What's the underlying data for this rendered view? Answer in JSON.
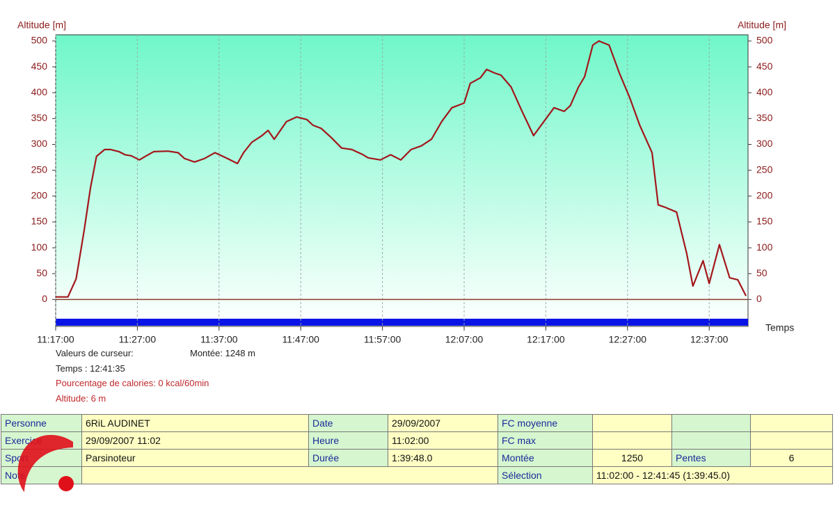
{
  "chart_data": {
    "type": "line",
    "y_label": "Altitude [m]",
    "y2_label": "Altitude [m]",
    "x_label": "Temps",
    "color": "#a3161a",
    "x": [
      "11:17:00",
      "11:18:30",
      "11:19:30",
      "11:20:30",
      "11:21:15",
      "11:22:00",
      "11:23:00",
      "11:23:45",
      "11:24:45",
      "11:25:30",
      "11:26:15",
      "11:27:15",
      "11:28:00",
      "11:29:00",
      "11:30:45",
      "11:32:00",
      "11:32:45",
      "11:34:00",
      "11:35:15",
      "11:36:30",
      "11:38:00",
      "11:39:15",
      "11:40:00",
      "11:41:00",
      "11:42:15",
      "11:43:00",
      "11:43:45",
      "11:45:15",
      "11:46:30",
      "11:47:45",
      "11:48:30",
      "11:49:30",
      "11:50:45",
      "11:52:00",
      "11:53:15",
      "11:54:30",
      "11:55:15",
      "11:56:45",
      "11:58:00",
      "11:59:15",
      "12:00:30",
      "12:01:45",
      "12:03:00",
      "12:04:15",
      "12:05:30",
      "12:07:00",
      "12:07:45",
      "12:09:00",
      "12:09:45",
      "12:10:45",
      "12:11:30",
      "12:12:45",
      "12:14:00",
      "12:15:30",
      "12:16:45",
      "12:18:00",
      "12:19:15",
      "12:20:00",
      "12:21:00",
      "12:21:45",
      "12:22:45",
      "12:23:30",
      "12:24:45",
      "12:26:00",
      "12:27:15",
      "12:28:30",
      "12:30:00",
      "12:30:45",
      "12:31:30",
      "12:33:00",
      "12:34:15",
      "12:35:00",
      "12:36:15",
      "12:37:00",
      "12:38:15",
      "12:39:30",
      "12:40:30",
      "12:41:30"
    ],
    "values": [
      5,
      5,
      40,
      135,
      215,
      277,
      290,
      290,
      286,
      280,
      278,
      270,
      277,
      286,
      287,
      284,
      273,
      266,
      273,
      284,
      273,
      263,
      284,
      304,
      317,
      327,
      310,
      344,
      353,
      348,
      337,
      331,
      313,
      293,
      290,
      281,
      274,
      270,
      280,
      270,
      290,
      297,
      310,
      344,
      371,
      380,
      418,
      429,
      445,
      438,
      434,
      411,
      367,
      317,
      344,
      371,
      364,
      375,
      411,
      431,
      492,
      500,
      492,
      438,
      391,
      337,
      284,
      183,
      179,
      169,
      89,
      26,
      75,
      31,
      106,
      42,
      38,
      7
    ],
    "xlim": [
      "11:17:00",
      "12:41:45"
    ],
    "xticks": [
      "11:17:00",
      "11:27:00",
      "11:37:00",
      "11:47:00",
      "11:57:00",
      "12:07:00",
      "12:17:00",
      "12:27:00",
      "12:37:00"
    ],
    "ylim": [
      -52,
      512
    ],
    "yticks": [
      0,
      50,
      100,
      150,
      200,
      250,
      300,
      350,
      400,
      450,
      500
    ],
    "y2lim": [
      -52,
      512
    ],
    "y2ticks": [
      0,
      50,
      100,
      150,
      200,
      250,
      300,
      350,
      400,
      450,
      500
    ],
    "grid": true
  },
  "cursor_info": {
    "title": "Valeurs de curseur:",
    "climb": "Montée: 1248 m",
    "time": "Temps : 12:41:35",
    "calories": "Pourcentage de calories: 0 kcal/60min",
    "altitude": "Altitude: 6 m"
  },
  "table": {
    "rows": [
      [
        "Personne",
        "6RiL AUDINET",
        "Date",
        "29/09/2007",
        "FC moyenne"
      ],
      [
        "Exercice",
        "29/09/2007 11:02",
        "Heure",
        "11:02:00",
        "FC max"
      ],
      [
        "Sport",
        "Parsinoteur",
        "Durée",
        "1:39:48.0",
        "Montée",
        "1250",
        "Pentes",
        "6"
      ],
      [
        "Note",
        "Sélection",
        "11:02:00 - 12:41:45 (1:39:45.0)"
      ]
    ]
  }
}
